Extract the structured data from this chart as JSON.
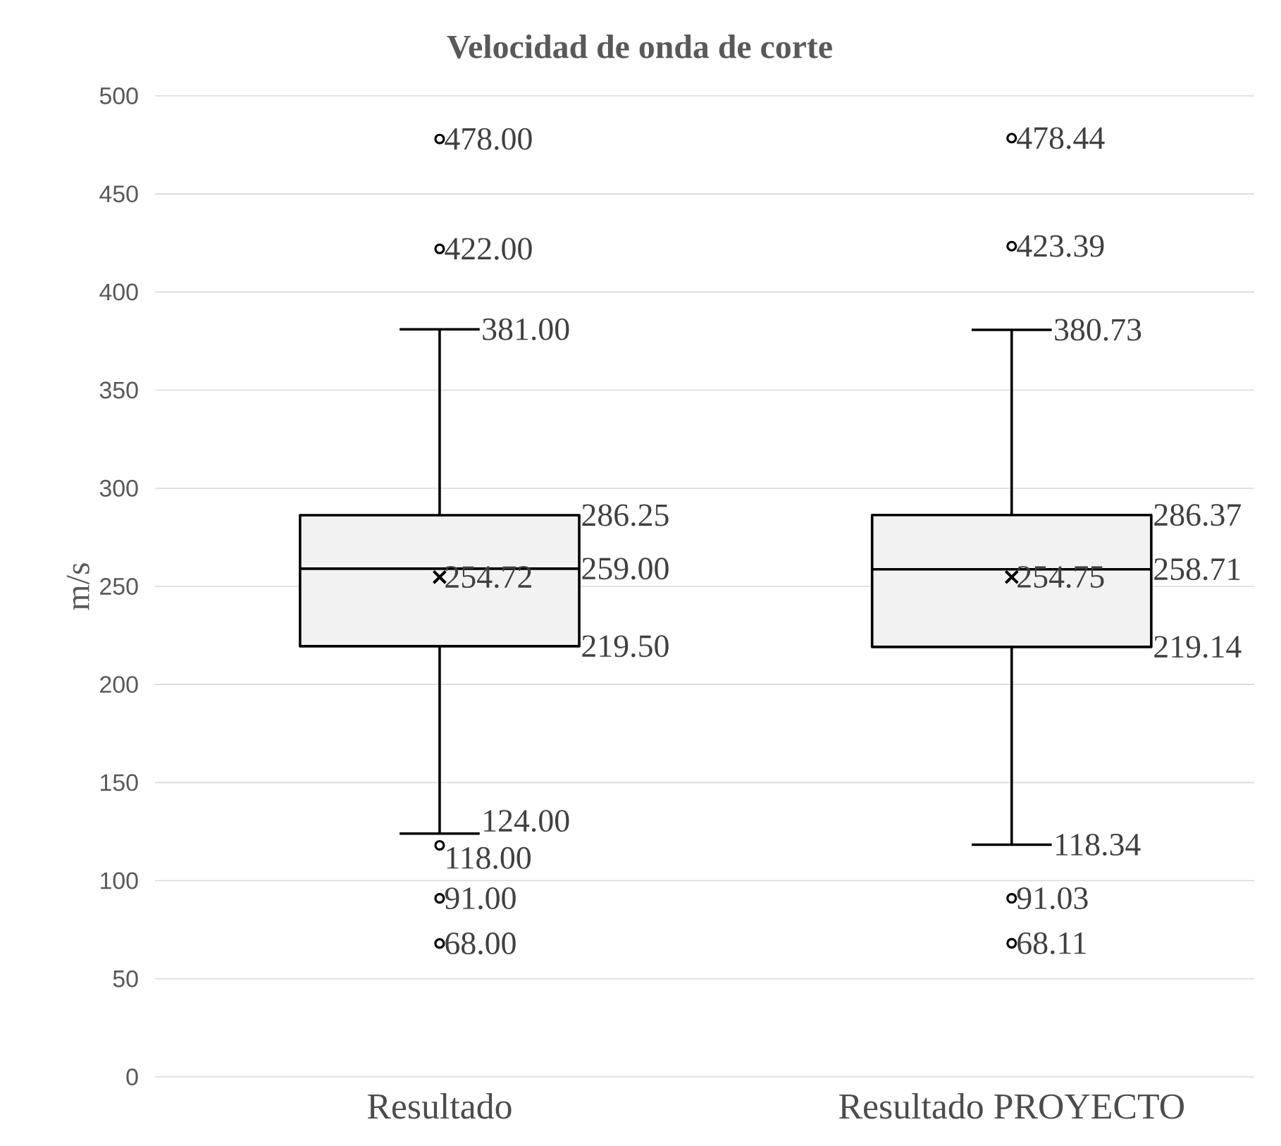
{
  "chart_data": {
    "type": "box",
    "title": "Velocidad de onda de corte",
    "ylabel": "m/s",
    "categories": [
      "Resultado",
      "Resultado PROYECTO"
    ],
    "series": [
      {
        "color": "#f2f2f2",
        "boxes": [
          {
            "low": 124,
            "q1": 219.5,
            "median": 259,
            "q3": 286.25,
            "high": 381,
            "mean": 254.72,
            "outliers": [
              478,
              422,
              118,
              91,
              68
            ]
          },
          {
            "low": 118.34,
            "q1": 219.14,
            "median": 258.71,
            "q3": 286.37,
            "high": 380.73,
            "mean": 254.75,
            "outliers": [
              478.44,
              423.39,
              91.03,
              68.11
            ]
          }
        ]
      }
    ],
    "annotations": [
      "381.00",
      "286.25",
      "259.00",
      "254.72",
      "219.50",
      "124.00",
      "478.00",
      "422.00",
      "118.00",
      "91.00",
      "68.00",
      "380.73",
      "286.37",
      "258.71",
      "254.75",
      "219.14",
      "118.34",
      "478.44",
      "423.39",
      "91.03",
      "68.11"
    ],
    "ylim": [
      0,
      500
    ],
    "yticks": [
      0,
      50,
      100,
      150,
      200,
      250,
      300,
      350,
      400,
      450,
      500
    ],
    "grid": "y"
  }
}
